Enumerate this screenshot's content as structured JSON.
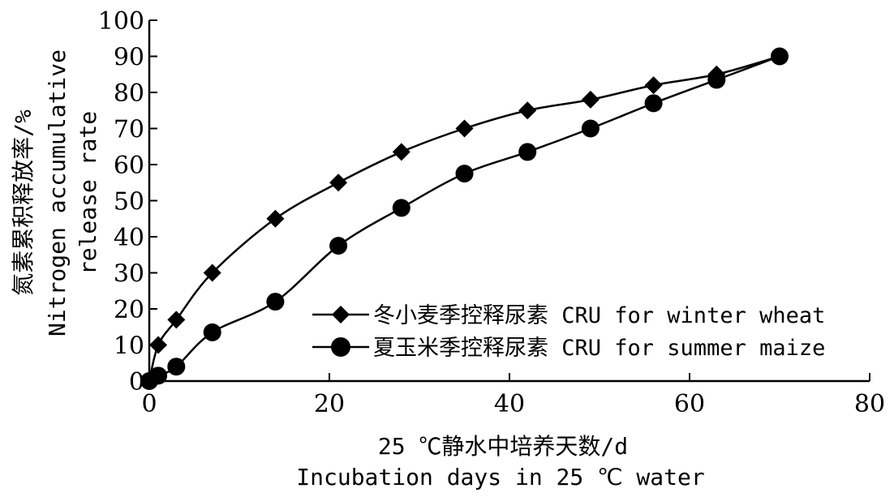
{
  "chart_data": {
    "type": "line",
    "title": "",
    "xlabel_cn": "25 ℃静水中培养天数/d",
    "xlabel_en": "Incubation days in 25 ℃ water",
    "ylabel_cn": "氮素累积释放率/%",
    "ylabel_en1": "Nitrogen accumulative",
    "ylabel_en2": "release rate",
    "xlim": [
      0,
      80
    ],
    "ylim": [
      0,
      100
    ],
    "xticks": [
      "0",
      "20",
      "40",
      "60",
      "80"
    ],
    "yticks": [
      "0",
      "10",
      "20",
      "30",
      "40",
      "50",
      "60",
      "70",
      "80",
      "90",
      "100"
    ],
    "grid": false,
    "legend_position": "bottom-right",
    "series": [
      {
        "name": "冬小麦季控释尿素 CRU for winter wheat",
        "marker": "diamond",
        "x": [
          0,
          1,
          3,
          7,
          14,
          21,
          28,
          35,
          42,
          49,
          56,
          63,
          70
        ],
        "y": [
          0,
          10,
          17,
          30,
          45,
          55,
          63.5,
          70,
          75,
          78,
          82,
          85,
          90
        ]
      },
      {
        "name": "夏玉米季控释尿素 CRU for summer maize",
        "marker": "circle",
        "x": [
          0,
          1,
          3,
          7,
          14,
          21,
          28,
          35,
          42,
          49,
          56,
          63,
          70
        ],
        "y": [
          0,
          1.5,
          4,
          13.5,
          22,
          37.5,
          48,
          57.5,
          63.5,
          70,
          77,
          83.5,
          90
        ]
      }
    ]
  }
}
